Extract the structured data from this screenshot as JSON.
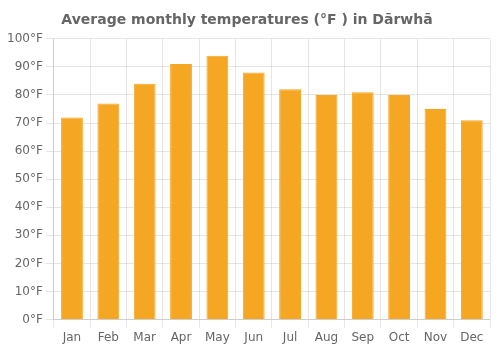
{
  "chart_data": {
    "type": "bar",
    "title": "Average monthly temperatures (°F ) in Dārwhā",
    "categories": [
      "Jan",
      "Feb",
      "Mar",
      "Apr",
      "May",
      "Jun",
      "Jul",
      "Aug",
      "Sep",
      "Oct",
      "Nov",
      "Dec"
    ],
    "values": [
      72,
      77,
      84,
      91,
      94,
      88,
      82,
      80,
      81,
      80,
      75,
      71
    ],
    "color": "#F5A623",
    "ylim": [
      0,
      100
    ],
    "yticks": [
      {
        "value": 0,
        "label": "0°F"
      },
      {
        "value": 10,
        "label": "10°F"
      },
      {
        "value": 20,
        "label": "20°F"
      },
      {
        "value": 30,
        "label": "30°F"
      },
      {
        "value": 40,
        "label": "40°F"
      },
      {
        "value": 50,
        "label": "50°F"
      },
      {
        "value": 60,
        "label": "60°F"
      },
      {
        "value": 70,
        "label": "70°F"
      },
      {
        "value": 80,
        "label": "80°F"
      },
      {
        "value": 90,
        "label": "90°F"
      },
      {
        "value": 100,
        "label": "100°F"
      }
    ],
    "grid": true
  }
}
